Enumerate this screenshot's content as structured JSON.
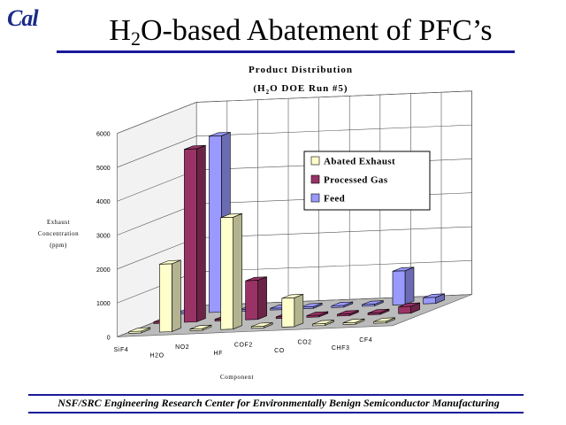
{
  "header": {
    "logo_text": "Cal",
    "title_pre": "H",
    "title_sub": "2",
    "title_post": "O-based Abatement of PFC’s"
  },
  "footer": {
    "text": "NSF/SRC Engineering Research Center for Environmentally Benign Semiconductor Manufacturing"
  },
  "colors": {
    "Abated Exhaust": "#ffffcc",
    "Processed Gas": "#993366",
    "Feed": "#9999ff",
    "rule": "#1a1a9a"
  },
  "chart_data": {
    "type": "bar",
    "title_line1": "Product Distribution",
    "title_line2_pre": "(H",
    "title_line2_sub": "2",
    "title_line2_post": "O DOE Run #5)",
    "ylabel_lines": [
      "Exhaust",
      "Concentration",
      "(ppm)"
    ],
    "xlabel": "Component",
    "ylim": [
      0,
      6000
    ],
    "yticks": [
      0,
      1000,
      2000,
      3000,
      4000,
      5000,
      6000
    ],
    "categories": [
      "SiF4",
      "H2O",
      "NO2",
      "HF",
      "COF2",
      "CO",
      "CO2",
      "CHF3",
      "CF4"
    ],
    "series": [
      {
        "name": "Abated Exhaust",
        "values": [
          50,
          2000,
          50,
          3300,
          50,
          850,
          50,
          50,
          50
        ]
      },
      {
        "name": "Processed Gas",
        "values": [
          50,
          5100,
          50,
          1150,
          50,
          50,
          50,
          50,
          200
        ]
      },
      {
        "name": "Feed",
        "values": [
          50,
          5200,
          50,
          50,
          50,
          50,
          50,
          1000,
          180
        ]
      }
    ],
    "legend_position": "right",
    "gridlines": true
  }
}
